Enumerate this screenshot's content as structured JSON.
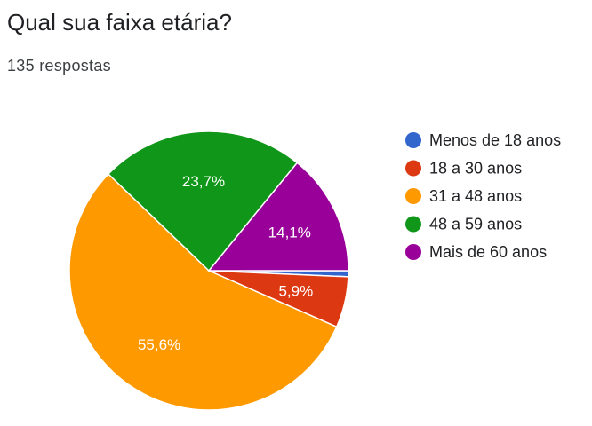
{
  "question": "Qual sua faixa etária?",
  "responses_label": "135 respostas",
  "chart_data": {
    "type": "pie",
    "categories": [
      "Menos de 18 anos",
      "18 a 30 anos",
      "31 a 48 anos",
      "48 a 59 anos",
      "Mais de 60 anos"
    ],
    "values": [
      0.7,
      5.9,
      55.6,
      23.7,
      14.1
    ],
    "value_labels": [
      "",
      "5,9%",
      "55,6%",
      "23,7%",
      "14,1%"
    ],
    "colors": [
      "#3366cc",
      "#dc3912",
      "#ff9900",
      "#109618",
      "#990099"
    ],
    "legend_position": "right",
    "start_angle_deg": 90,
    "direction": "clockwise"
  }
}
